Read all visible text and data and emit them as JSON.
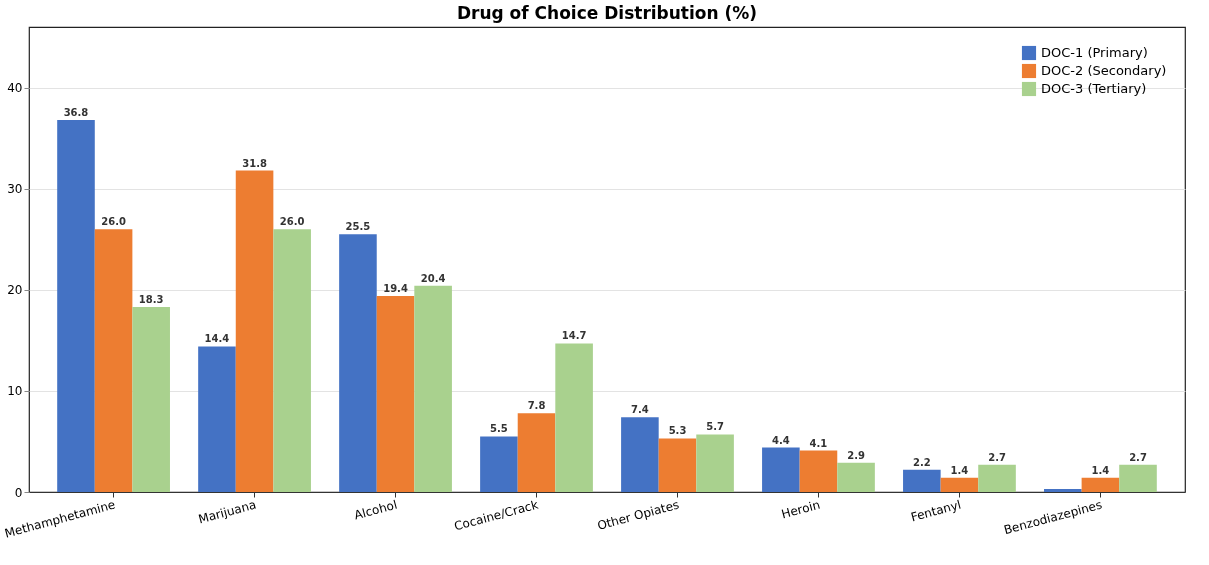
{
  "chart_data": {
    "type": "bar",
    "title": "Drug of Choice Distribution (%)",
    "categories": [
      "Methamphetamine",
      "Marijuana",
      "Alcohol",
      "Cocaine/Crack",
      "Other Opiates",
      "Heroin",
      "Fentanyl",
      "Benzodiazepines"
    ],
    "series": [
      {
        "name": "DOC-1 (Primary)",
        "color": "#4472c4",
        "values": [
          36.8,
          14.4,
          25.5,
          5.5,
          7.4,
          4.4,
          2.2,
          0.3
        ],
        "value_labels": [
          "36.8",
          "14.4",
          "25.5",
          "5.5",
          "7.4",
          "4.4",
          "2.2",
          null
        ]
      },
      {
        "name": "DOC-2 (Secondary)",
        "color": "#ed7d31",
        "values": [
          26.0,
          31.8,
          19.4,
          7.8,
          5.3,
          4.1,
          1.4,
          1.4
        ],
        "value_labels": [
          "26.0",
          "31.8",
          "19.4",
          "7.8",
          "5.3",
          "4.1",
          "1.4",
          "1.4"
        ]
      },
      {
        "name": "DOC-3 (Tertiary)",
        "color": "#a9d18e",
        "values": [
          18.3,
          26.0,
          20.4,
          14.7,
          5.7,
          2.9,
          2.7,
          2.7
        ],
        "value_labels": [
          "18.3",
          "26.0",
          "20.4",
          "14.7",
          "5.7",
          "2.9",
          "2.7",
          "2.7"
        ]
      }
    ],
    "ylim": [
      0,
      46
    ],
    "yticks": [
      0,
      10,
      20,
      30,
      40
    ],
    "grid": "y",
    "legend": "top right"
  }
}
